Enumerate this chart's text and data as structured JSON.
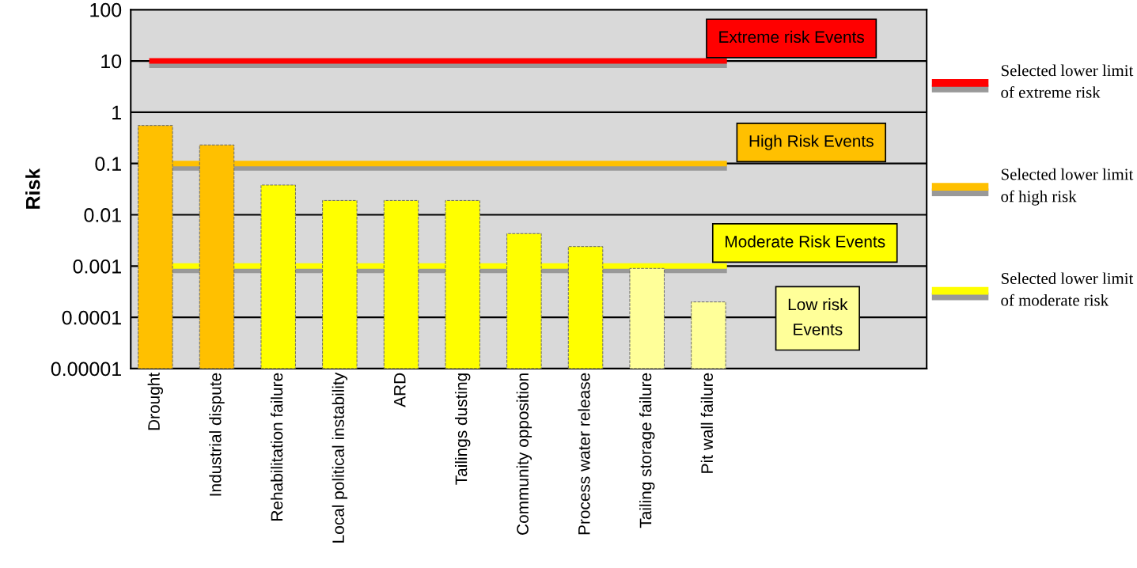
{
  "chart_data": {
    "type": "bar",
    "ylabel": "Risk",
    "categories": [
      "Drought",
      "Industrial dispute",
      "Rehabilitation failure",
      "Local political instability",
      "ARD",
      "Tailings dusting",
      "Community opposition",
      "Process water release",
      "Tailing storage failure",
      "Pit wall failure"
    ],
    "values": [
      0.55,
      0.23,
      0.038,
      0.019,
      0.019,
      0.019,
      0.0043,
      0.0024,
      0.0009,
      0.0002
    ],
    "colors": [
      "#ffc000",
      "#ffc000",
      "#ffff00",
      "#ffff00",
      "#ffff00",
      "#ffff00",
      "#ffff00",
      "#ffff00",
      "#ffff99",
      "#ffff99"
    ],
    "log": "y",
    "ylim": [
      1e-05,
      100
    ],
    "yticks": [
      {
        "value": 1e-05,
        "label": "0.00001"
      },
      {
        "value": 0.0001,
        "label": "0.0001"
      },
      {
        "value": 0.001,
        "label": "0.001"
      },
      {
        "value": 0.01,
        "label": "0.01"
      },
      {
        "value": 0.1,
        "label": "0.1"
      },
      {
        "value": 1,
        "label": "1"
      },
      {
        "value": 10,
        "label": "10"
      },
      {
        "value": 100,
        "label": "100"
      }
    ],
    "grid": "y",
    "legend": "right",
    "ref_lines": [
      {
        "axis": "y",
        "value": 10,
        "label": "Selected lower limit of extreme risk",
        "color": "#ff0000"
      },
      {
        "axis": "y",
        "value": 0.1,
        "label": "Selected lower limit of high risk",
        "color": "#ffc000"
      },
      {
        "axis": "y",
        "value": 0.001,
        "label": "Selected lower limit of moderate risk",
        "color": "#ffff00"
      }
    ],
    "annotations": [
      "Extreme risk Events",
      "High Risk Events",
      "Moderate Risk Events",
      "Low risk\nEvents"
    ]
  }
}
